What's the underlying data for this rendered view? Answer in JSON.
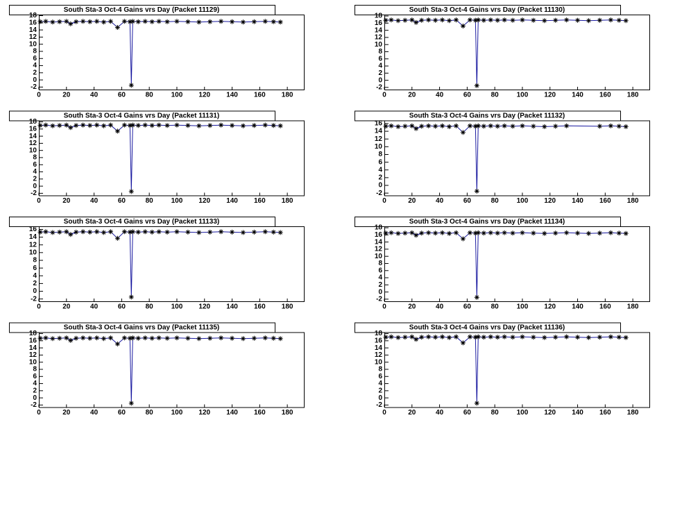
{
  "chart_data": [
    {
      "type": "line",
      "title": "South Sta-3 Oct-4 Gains vrs Day (Packet 11129)",
      "series": [
        {
          "line_color": "#1a1aa0",
          "marker_color": "#000000",
          "x": [
            1,
            5,
            10,
            15,
            20,
            23,
            27,
            32,
            37,
            42,
            47,
            52,
            57,
            62,
            66,
            67,
            68,
            72,
            77,
            82,
            87,
            93,
            100,
            108,
            116,
            124,
            132,
            140,
            148,
            156,
            164,
            170,
            175
          ],
          "values": [
            16.3,
            16.4,
            16.2,
            16.3,
            16.4,
            15.7,
            16.3,
            16.4,
            16.3,
            16.4,
            16.2,
            16.4,
            14.7,
            16.4,
            16.3,
            -1.5,
            16.4,
            16.3,
            16.4,
            16.3,
            16.4,
            16.3,
            16.4,
            16.3,
            16.2,
            16.3,
            16.4,
            16.3,
            16.2,
            16.3,
            16.4,
            16.3,
            16.2
          ]
        }
      ],
      "xlim": [
        0,
        192
      ],
      "xticks": [
        0,
        20,
        40,
        60,
        80,
        100,
        120,
        140,
        160,
        180
      ],
      "ylim": [
        -2.7,
        18.3
      ],
      "yticks": [
        -2,
        0,
        2,
        4,
        6,
        8,
        10,
        12,
        14,
        16,
        18
      ]
    },
    {
      "type": "line",
      "title": "South Sta-3 Oct-4 Gains vrs Day (Packet 11130)",
      "series": [
        {
          "line_color": "#1a1aa0",
          "marker_color": "#000000",
          "x": [
            1,
            5,
            10,
            15,
            20,
            23,
            27,
            32,
            37,
            42,
            47,
            52,
            57,
            62,
            66,
            67,
            68,
            72,
            77,
            82,
            87,
            93,
            100,
            108,
            116,
            124,
            132,
            140,
            148,
            156,
            164,
            170,
            175
          ],
          "values": [
            16.8,
            16.9,
            16.7,
            16.8,
            16.9,
            16.2,
            16.8,
            16.9,
            16.8,
            16.9,
            16.7,
            16.9,
            15.2,
            16.9,
            16.8,
            -1.5,
            16.9,
            16.8,
            16.9,
            16.8,
            16.9,
            16.8,
            16.9,
            16.8,
            16.7,
            16.8,
            16.9,
            16.8,
            16.7,
            16.8,
            16.9,
            16.8,
            16.7
          ]
        }
      ],
      "xlim": [
        0,
        192
      ],
      "xticks": [
        0,
        20,
        40,
        60,
        80,
        100,
        120,
        140,
        160,
        180
      ],
      "ylim": [
        -2.6,
        18.4
      ],
      "yticks": [
        -2,
        0,
        2,
        4,
        6,
        8,
        10,
        12,
        14,
        16,
        18
      ]
    },
    {
      "type": "line",
      "title": "South Sta-3 Oct-4 Gains vrs Day (Packet 11131)",
      "series": [
        {
          "line_color": "#1a1aa0",
          "marker_color": "#000000",
          "x": [
            1,
            5,
            10,
            15,
            20,
            23,
            27,
            32,
            37,
            42,
            47,
            52,
            57,
            62,
            66,
            67,
            68,
            72,
            77,
            82,
            87,
            93,
            100,
            108,
            116,
            124,
            132,
            140,
            148,
            156,
            164,
            170,
            175
          ],
          "values": [
            17,
            17.1,
            16.9,
            17,
            17.1,
            16.4,
            17,
            17.1,
            17,
            17.1,
            16.9,
            17.1,
            15.4,
            17.1,
            17,
            -1.5,
            17.1,
            17,
            17.1,
            17,
            17.1,
            17,
            17.1,
            17,
            16.9,
            17,
            17.1,
            17,
            16.9,
            17,
            17.1,
            17,
            16.9
          ]
        }
      ],
      "xlim": [
        0,
        192
      ],
      "xticks": [
        0,
        20,
        40,
        60,
        80,
        100,
        120,
        140,
        160,
        180
      ],
      "ylim": [
        -2.6,
        18.4
      ],
      "yticks": [
        -2,
        0,
        2,
        4,
        6,
        8,
        10,
        12,
        14,
        16,
        18
      ]
    },
    {
      "type": "line",
      "title": "South Sta-3 Oct-4 Gains vrs Day (Packet 11132)",
      "series": [
        {
          "line_color": "#1a1aa0",
          "marker_color": "#000000",
          "x": [
            1,
            5,
            10,
            15,
            20,
            23,
            27,
            32,
            37,
            42,
            47,
            52,
            57,
            62,
            66,
            67,
            68,
            72,
            77,
            82,
            87,
            93,
            100,
            108,
            116,
            124,
            132,
            156,
            164,
            170,
            175
          ],
          "values": [
            15.3,
            15.4,
            15.2,
            15.3,
            15.4,
            14.7,
            15.3,
            15.4,
            15.3,
            15.4,
            15.2,
            15.4,
            13.7,
            15.4,
            15.3,
            -1.5,
            15.4,
            15.3,
            15.4,
            15.3,
            15.4,
            15.3,
            15.4,
            15.3,
            15.2,
            15.3,
            15.4,
            15.3,
            15.4,
            15.3,
            15.2
          ]
        }
      ],
      "xlim": [
        0,
        192
      ],
      "xticks": [
        0,
        20,
        40,
        60,
        80,
        100,
        120,
        140,
        160,
        180
      ],
      "ylim": [
        -2.6,
        16.8
      ],
      "yticks": [
        -2,
        0,
        2,
        4,
        6,
        8,
        10,
        12,
        14,
        16
      ]
    },
    {
      "type": "line",
      "title": "South Sta-3 Oct-4 Gains vrs Day (Packet 11133)",
      "series": [
        {
          "line_color": "#1a1aa0",
          "marker_color": "#000000",
          "x": [
            1,
            5,
            10,
            15,
            20,
            23,
            27,
            32,
            37,
            42,
            47,
            52,
            57,
            62,
            66,
            67,
            68,
            72,
            77,
            82,
            87,
            93,
            100,
            108,
            116,
            124,
            132,
            140,
            148,
            156,
            164,
            170,
            175
          ],
          "values": [
            15.3,
            15.4,
            15.2,
            15.3,
            15.4,
            14.7,
            15.3,
            15.4,
            15.3,
            15.4,
            15.2,
            15.4,
            13.7,
            15.4,
            15.3,
            -1.5,
            15.4,
            15.3,
            15.4,
            15.3,
            15.4,
            15.3,
            15.4,
            15.3,
            15.2,
            15.3,
            15.4,
            15.3,
            15.2,
            15.3,
            15.4,
            15.3,
            15.2
          ]
        }
      ],
      "xlim": [
        0,
        192
      ],
      "xticks": [
        0,
        20,
        40,
        60,
        80,
        100,
        120,
        140,
        160,
        180
      ],
      "ylim": [
        -2.6,
        16.8
      ],
      "yticks": [
        -2,
        0,
        2,
        4,
        6,
        8,
        10,
        12,
        14,
        16
      ]
    },
    {
      "type": "line",
      "title": "South Sta-3 Oct-4 Gains vrs Day (Packet 11134)",
      "series": [
        {
          "line_color": "#1a1aa0",
          "marker_color": "#000000",
          "x": [
            1,
            5,
            10,
            15,
            20,
            23,
            27,
            32,
            37,
            42,
            47,
            52,
            57,
            62,
            66,
            67,
            68,
            72,
            77,
            82,
            87,
            93,
            100,
            108,
            116,
            124,
            132,
            140,
            148,
            156,
            164,
            170,
            175
          ],
          "values": [
            16.5,
            16.6,
            16.4,
            16.5,
            16.6,
            15.9,
            16.5,
            16.6,
            16.5,
            16.6,
            16.4,
            16.6,
            14.9,
            16.6,
            16.5,
            -1.5,
            16.6,
            16.5,
            16.6,
            16.5,
            16.6,
            16.5,
            16.6,
            16.5,
            16.4,
            16.5,
            16.6,
            16.5,
            16.4,
            16.5,
            16.6,
            16.5,
            16.4
          ]
        }
      ],
      "xlim": [
        0,
        192
      ],
      "xticks": [
        0,
        20,
        40,
        60,
        80,
        100,
        120,
        140,
        160,
        180
      ],
      "ylim": [
        -2.6,
        18.4
      ],
      "yticks": [
        -2,
        0,
        2,
        4,
        6,
        8,
        10,
        12,
        14,
        16,
        18
      ]
    },
    {
      "type": "line",
      "title": "South Sta-3 Oct-4 Gains vrs Day (Packet 11135)",
      "series": [
        {
          "line_color": "#1a1aa0",
          "marker_color": "#000000",
          "x": [
            1,
            5,
            10,
            15,
            20,
            23,
            27,
            32,
            37,
            42,
            47,
            52,
            57,
            62,
            66,
            67,
            68,
            72,
            77,
            82,
            87,
            93,
            100,
            108,
            116,
            124,
            132,
            140,
            148,
            156,
            164,
            170,
            175
          ],
          "values": [
            16.7,
            16.8,
            16.6,
            16.7,
            16.8,
            16.1,
            16.7,
            16.8,
            16.7,
            16.8,
            16.6,
            16.8,
            15.1,
            16.8,
            16.7,
            -1.5,
            16.8,
            16.7,
            16.8,
            16.7,
            16.8,
            16.7,
            16.8,
            16.7,
            16.6,
            16.7,
            16.8,
            16.7,
            16.6,
            16.7,
            16.8,
            16.7,
            16.6
          ]
        }
      ],
      "xlim": [
        0,
        192
      ],
      "xticks": [
        0,
        20,
        40,
        60,
        80,
        100,
        120,
        140,
        160,
        180
      ],
      "ylim": [
        -2.6,
        18.4
      ],
      "yticks": [
        -2,
        0,
        2,
        4,
        6,
        8,
        10,
        12,
        14,
        16,
        18
      ]
    },
    {
      "type": "line",
      "title": "South Sta-3 Oct-4 Gains vrs Day (Packet 11136)",
      "series": [
        {
          "line_color": "#1a1aa0",
          "marker_color": "#000000",
          "x": [
            1,
            5,
            10,
            15,
            20,
            23,
            27,
            32,
            37,
            42,
            47,
            52,
            57,
            62,
            66,
            67,
            68,
            72,
            77,
            82,
            87,
            93,
            100,
            108,
            116,
            124,
            132,
            140,
            148,
            156,
            164,
            170,
            175
          ],
          "values": [
            17,
            17.1,
            16.9,
            17,
            17.1,
            16.4,
            17,
            17.1,
            17,
            17.1,
            16.9,
            17.1,
            15.4,
            17.1,
            17,
            -1.5,
            17.1,
            17,
            17.1,
            17,
            17.1,
            17,
            17.1,
            17,
            16.9,
            17,
            17.1,
            17,
            16.9,
            17,
            17.1,
            17,
            16.9
          ]
        }
      ],
      "xlim": [
        0,
        192
      ],
      "xticks": [
        0,
        20,
        40,
        60,
        80,
        100,
        120,
        140,
        160,
        180
      ],
      "ylim": [
        -2.6,
        18.4
      ],
      "yticks": [
        -2,
        0,
        2,
        4,
        6,
        8,
        10,
        12,
        14,
        16,
        18
      ]
    }
  ]
}
